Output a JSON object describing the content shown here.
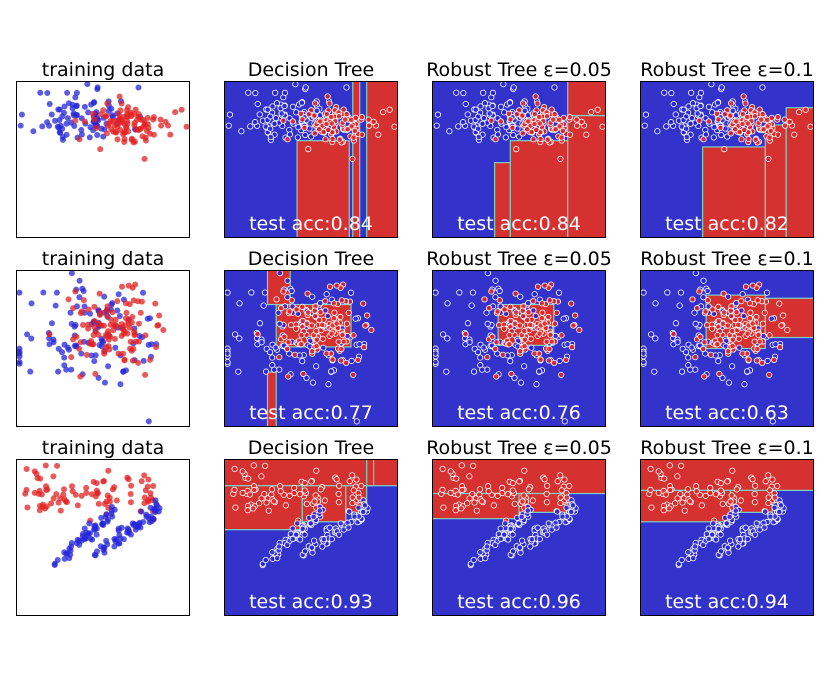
{
  "figure": {
    "colors": {
      "class_red": "#e32222",
      "class_blue": "#2626d9",
      "region_red": "#d53131",
      "region_blue": "#3333cc",
      "boundary": "#7fd0c6",
      "point_edge": "#ffffff"
    }
  },
  "chart_data": [
    {
      "type": "scatter",
      "row": 1,
      "col": 1,
      "title": "training data",
      "dataset": "two offset clusters",
      "xlim": [
        0,
        1
      ],
      "ylim": [
        0,
        1
      ],
      "series": [
        {
          "name": "class 0 (blue)",
          "color": "#2626d9",
          "center": [
            0.38,
            0.78
          ],
          "spread": [
            0.14,
            0.09
          ],
          "count": 90,
          "seed": 11
        },
        {
          "name": "class 1 (red)",
          "color": "#e32222",
          "center": [
            0.66,
            0.72
          ],
          "spread": [
            0.12,
            0.07
          ],
          "count": 95,
          "seed": 12
        }
      ]
    },
    {
      "type": "decision_regions",
      "row": 1,
      "col": 2,
      "title": "Decision Tree",
      "accuracy_label": "test acc:0.84",
      "xlim": [
        0,
        1
      ],
      "ylim": [
        0,
        1
      ],
      "red_regions": [
        [
          0.42,
          0.0,
          0.72,
          0.62
        ],
        [
          0.82,
          0.0,
          1.0,
          1.0
        ],
        [
          0.74,
          0.0,
          0.78,
          1.0
        ]
      ],
      "points_from": 0
    },
    {
      "type": "decision_regions",
      "row": 1,
      "col": 3,
      "title": "Robust Tree ε=0.05",
      "accuracy_label": "test acc:0.84",
      "xlim": [
        0,
        1
      ],
      "ylim": [
        0,
        1
      ],
      "red_regions": [
        [
          0.36,
          0.0,
          0.45,
          0.48
        ],
        [
          0.45,
          0.0,
          0.78,
          0.62
        ],
        [
          0.78,
          0.0,
          1.0,
          0.78
        ],
        [
          0.78,
          0.78,
          1.0,
          1.0
        ]
      ],
      "points_from": 0
    },
    {
      "type": "decision_regions",
      "row": 1,
      "col": 4,
      "title": "Robust Tree ε=0.1",
      "accuracy_label": "test acc:0.82",
      "xlim": [
        0,
        1
      ],
      "ylim": [
        0,
        1
      ],
      "red_regions": [
        [
          0.36,
          0.0,
          0.72,
          0.58
        ],
        [
          0.72,
          0.0,
          0.84,
          0.72
        ],
        [
          0.84,
          0.0,
          1.0,
          0.83
        ]
      ],
      "points_from": 0
    },
    {
      "type": "scatter",
      "row": 2,
      "col": 1,
      "title": "training data",
      "dataset": "overlapping blobs",
      "xlim": [
        0,
        1
      ],
      "ylim": [
        0,
        1
      ],
      "series": [
        {
          "name": "class 0 (blue)",
          "color": "#2626d9",
          "center": [
            0.45,
            0.56
          ],
          "spread": [
            0.22,
            0.17
          ],
          "count": 110,
          "seed": 21
        },
        {
          "name": "class 1 (red)",
          "color": "#e32222",
          "center": [
            0.55,
            0.63
          ],
          "spread": [
            0.12,
            0.11
          ],
          "count": 110,
          "seed": 22
        }
      ]
    },
    {
      "type": "decision_regions",
      "row": 2,
      "col": 2,
      "title": "Decision Tree",
      "accuracy_label": "test acc:0.77",
      "xlim": [
        0,
        1
      ],
      "ylim": [
        0,
        1
      ],
      "red_regions": [
        [
          0.3,
          0.51,
          0.73,
          0.78
        ],
        [
          0.25,
          0.78,
          0.38,
          1.0
        ],
        [
          0.25,
          0.0,
          0.3,
          0.35
        ]
      ],
      "points_from": 4
    },
    {
      "type": "decision_regions",
      "row": 2,
      "col": 3,
      "title": "Robust Tree ε=0.05",
      "accuracy_label": "test acc:0.76",
      "xlim": [
        0,
        1
      ],
      "ylim": [
        0,
        1
      ],
      "red_regions": [
        [
          0.38,
          0.52,
          0.7,
          0.78
        ]
      ],
      "points_from": 4
    },
    {
      "type": "decision_regions",
      "row": 2,
      "col": 4,
      "title": "Robust Tree ε=0.1",
      "accuracy_label": "test acc:0.63",
      "xlim": [
        0,
        1
      ],
      "ylim": [
        0,
        1
      ],
      "red_regions": [
        [
          0.38,
          0.5,
          0.72,
          0.84
        ],
        [
          0.72,
          0.57,
          1.0,
          0.82
        ]
      ],
      "points_from": 4
    },
    {
      "type": "scatter",
      "row": 3,
      "col": 1,
      "title": "training data",
      "dataset": "diagonal bands",
      "xlim": [
        0,
        1
      ],
      "ylim": [
        0,
        1
      ],
      "series": [
        {
          "name": "class 1 (red)",
          "color": "#e32222",
          "pattern": "upper",
          "count": 85,
          "seed": 31
        },
        {
          "name": "class 0 (blue)",
          "color": "#2626d9",
          "pattern": "bands",
          "count": 110,
          "seed": 32
        }
      ]
    },
    {
      "type": "decision_regions",
      "row": 3,
      "col": 2,
      "title": "Decision Tree",
      "accuracy_label": "test acc:0.93",
      "xlim": [
        0,
        1
      ],
      "ylim": [
        0,
        1
      ],
      "red_regions": [
        [
          0.0,
          0.83,
          1.0,
          1.0
        ],
        [
          0.0,
          0.55,
          0.45,
          0.83
        ],
        [
          0.45,
          0.6,
          0.7,
          0.83
        ],
        [
          0.7,
          0.66,
          0.82,
          0.83
        ],
        [
          0.82,
          0.83,
          0.86,
          1.0
        ]
      ],
      "points_from": 8
    },
    {
      "type": "decision_regions",
      "row": 3,
      "col": 3,
      "title": "Robust Tree ε=0.05",
      "accuracy_label": "test acc:0.96",
      "xlim": [
        0,
        1
      ],
      "ylim": [
        0,
        1
      ],
      "red_regions": [
        [
          0.0,
          0.78,
          1.0,
          1.0
        ],
        [
          0.0,
          0.62,
          0.5,
          0.78
        ],
        [
          0.5,
          0.66,
          0.78,
          0.78
        ]
      ],
      "points_from": 8
    },
    {
      "type": "decision_regions",
      "row": 3,
      "col": 4,
      "title": "Robust Tree ε=0.1",
      "accuracy_label": "test acc:0.94",
      "xlim": [
        0,
        1
      ],
      "ylim": [
        0,
        1
      ],
      "red_regions": [
        [
          0.0,
          0.8,
          1.0,
          1.0
        ],
        [
          0.0,
          0.6,
          0.52,
          0.8
        ],
        [
          0.52,
          0.66,
          0.76,
          0.8
        ]
      ],
      "points_from": 8
    }
  ]
}
